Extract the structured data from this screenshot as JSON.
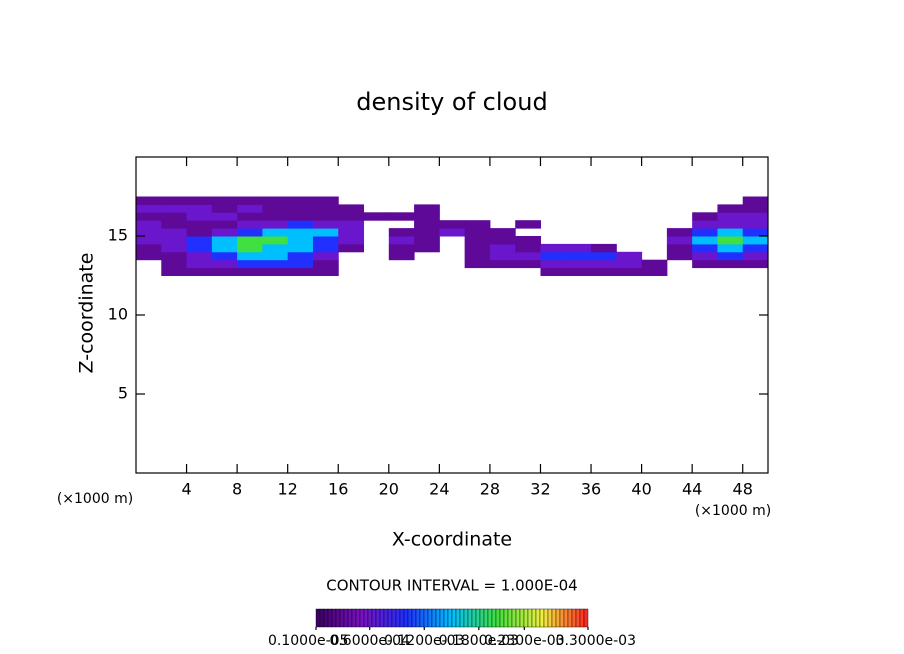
{
  "chart_data": {
    "type": "contour",
    "title": "density of cloud",
    "xlabel": "X-coordinate",
    "ylabel": "Z-coordinate",
    "x_unit_labels": [
      "(×1000 m)",
      "(×1000 m)"
    ],
    "annotation": "CONTOUR INTERVAL = 1.000E-04",
    "xlim": [
      0,
      50
    ],
    "ylim": [
      0,
      20
    ],
    "xticks": [
      4,
      8,
      12,
      16,
      20,
      24,
      28,
      32,
      36,
      40,
      44,
      48
    ],
    "yticks": [
      5,
      10,
      15
    ],
    "x_edges": [
      0,
      2,
      4,
      6,
      8,
      10,
      12,
      14,
      16,
      18,
      20,
      22,
      24,
      26,
      28,
      30,
      32,
      34,
      36,
      38,
      40,
      42,
      44,
      46,
      48,
      50
    ],
    "z_edges": [
      12.5,
      13,
      13.5,
      14,
      14.5,
      15,
      15.5,
      16,
      16.5,
      17,
      17.5
    ],
    "values": [
      [
        null,
        3e-05,
        3e-05,
        3e-05,
        3e-05,
        3e-05,
        3e-05,
        3e-05,
        null,
        null,
        null,
        null,
        null,
        null,
        null,
        null,
        3e-05,
        3e-05,
        3e-05,
        3e-05,
        3e-05,
        null,
        null,
        null,
        null
      ],
      [
        null,
        3e-05,
        6e-05,
        6e-05,
        0.0001,
        0.0001,
        0.0001,
        3e-05,
        null,
        null,
        null,
        null,
        null,
        3e-05,
        3e-05,
        3e-05,
        6e-05,
        6e-05,
        6e-05,
        6e-05,
        3e-05,
        null,
        3e-05,
        3e-05,
        3e-05
      ],
      [
        3e-05,
        3e-05,
        6e-05,
        0.0001,
        0.00015,
        0.00015,
        0.0001,
        6e-05,
        null,
        null,
        3e-05,
        null,
        null,
        3e-05,
        6e-05,
        6e-05,
        0.0001,
        0.0001,
        0.0001,
        6e-05,
        null,
        3e-05,
        6e-05,
        0.0001,
        6e-05
      ],
      [
        3e-05,
        6e-05,
        0.0001,
        0.00015,
        0.0002,
        0.00015,
        0.00015,
        0.0001,
        3e-05,
        null,
        3e-05,
        3e-05,
        null,
        3e-05,
        6e-05,
        3e-05,
        6e-05,
        6e-05,
        3e-05,
        null,
        null,
        3e-05,
        0.0001,
        0.00015,
        0.0001
      ],
      [
        6e-05,
        6e-05,
        0.0001,
        0.00015,
        0.0002,
        0.0002,
        0.00015,
        0.0001,
        6e-05,
        null,
        6e-05,
        3e-05,
        null,
        3e-05,
        3e-05,
        3e-05,
        null,
        null,
        null,
        null,
        null,
        6e-05,
        0.00015,
        0.0002,
        0.00015
      ],
      [
        6e-05,
        6e-05,
        3e-05,
        6e-05,
        0.0001,
        0.00015,
        0.00015,
        0.00015,
        6e-05,
        null,
        3e-05,
        3e-05,
        6e-05,
        3e-05,
        3e-05,
        null,
        null,
        null,
        null,
        null,
        null,
        3e-05,
        0.0001,
        0.00015,
        0.0001
      ],
      [
        6e-05,
        3e-05,
        3e-05,
        3e-05,
        6e-05,
        6e-05,
        0.0001,
        6e-05,
        6e-05,
        null,
        null,
        3e-05,
        3e-05,
        3e-05,
        null,
        3e-05,
        null,
        null,
        null,
        null,
        null,
        null,
        6e-05,
        6e-05,
        6e-05
      ],
      [
        3e-05,
        3e-05,
        6e-05,
        6e-05,
        3e-05,
        3e-05,
        3e-05,
        3e-05,
        3e-05,
        3e-05,
        3e-05,
        3e-05,
        null,
        null,
        null,
        null,
        null,
        null,
        null,
        null,
        null,
        null,
        3e-05,
        6e-05,
        6e-05
      ],
      [
        6e-05,
        6e-05,
        6e-05,
        3e-05,
        6e-05,
        3e-05,
        3e-05,
        3e-05,
        3e-05,
        null,
        null,
        3e-05,
        null,
        null,
        null,
        null,
        null,
        null,
        null,
        null,
        null,
        null,
        null,
        3e-05,
        3e-05
      ],
      [
        3e-05,
        3e-05,
        3e-05,
        3e-05,
        3e-05,
        3e-05,
        3e-05,
        3e-05,
        null,
        null,
        null,
        null,
        null,
        null,
        null,
        null,
        null,
        null,
        null,
        null,
        null,
        null,
        null,
        null,
        3e-05
      ]
    ],
    "clim": [
      1e-06,
      0.0003
    ],
    "colormap": [
      "#3a0060",
      "#7a10c0",
      "#2030ff",
      "#00c0ff",
      "#40e040",
      "#f0f040",
      "#ff2020"
    ],
    "colorbar_ticks": [
      {
        "value": 1e-06,
        "label": "0.1000e-05"
      },
      {
        "value": 6e-05,
        "label": "0.6000e-04"
      },
      {
        "value": 0.00012,
        "label": "0.1200e-03"
      },
      {
        "value": 0.00018,
        "label": "0.1800e-03"
      },
      {
        "value": 0.00023,
        "label": "0.2300e-03"
      },
      {
        "value": 0.0003,
        "label": "0.3000e-03"
      }
    ]
  }
}
